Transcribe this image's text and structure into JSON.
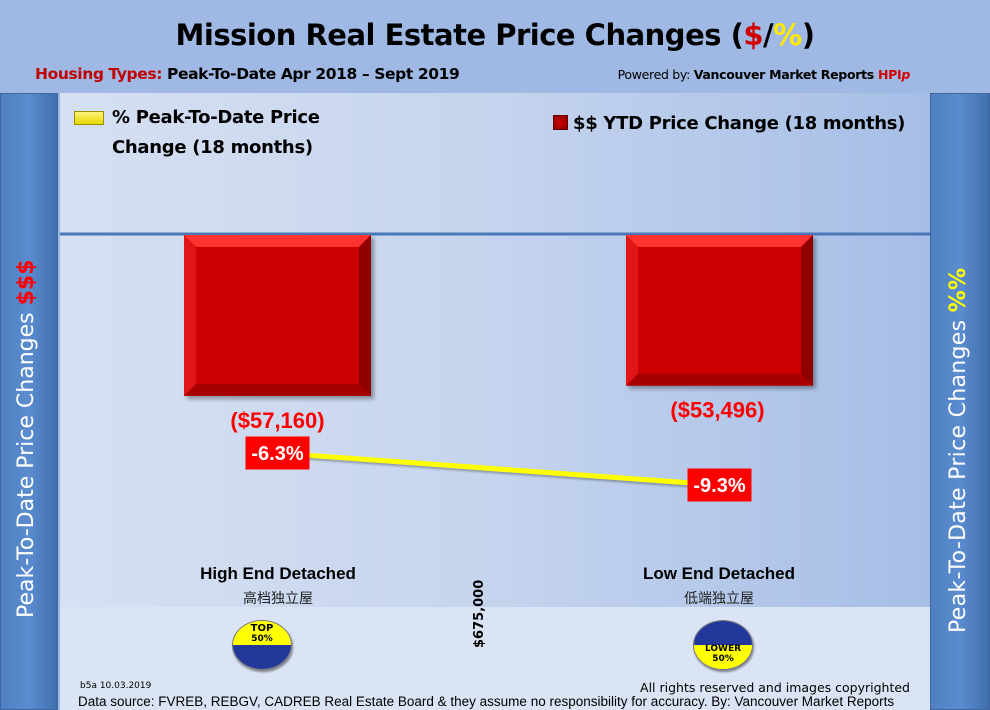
{
  "header": {
    "title_main": "Mission Real Estate Price Changes (",
    "title_dollar": "$",
    "title_slash": "/",
    "title_pct": "%",
    "title_close": ")",
    "subtitle_label": "Housing Types:",
    "subtitle_text": " Peak-To-Date Apr 2018 – Sept 2019",
    "powered_prefix": "Powered by: ",
    "powered_brand": "Vancouver Market Reports ",
    "powered_hpi": "HPI",
    "powered_p": "p"
  },
  "sidebars": {
    "left_text": "Peak-To-Date Price Changes ",
    "left_accent": "$$$",
    "right_text": "Peak-To-Date  Price  Changes  ",
    "right_accent": "%%"
  },
  "colors": {
    "bar": "#cc0606",
    "line": "#ffff00",
    "label_red": "#ff0000",
    "badge_yellow": "#ffff00",
    "badge_blue": "#22379a"
  },
  "chart_data": {
    "type": "bar",
    "title": "Mission Real Estate Price Changes ($/%)",
    "categories": [
      "High End Detached",
      "Low End Detached"
    ],
    "categories_cn": [
      "高档独立屋",
      "低端独立屋"
    ],
    "series": [
      {
        "name": "$$ YTD Price Change (18 months)",
        "type": "bar",
        "values": [
          -57160,
          -53496
        ],
        "labels": [
          "($57,160)",
          "($53,496)"
        ]
      },
      {
        "name": "% Peak-To-Date Price Change (18 months)",
        "type": "line",
        "values": [
          -6.3,
          -9.3
        ],
        "labels": [
          "-6.3%",
          "-9.3%"
        ]
      }
    ],
    "legend": [
      {
        "label": "% Peak-To-Date Price Change (18 months)",
        "position": "top-left"
      },
      {
        "label": "$$ YTD Price Change (18 months)",
        "position": "top-right"
      }
    ],
    "ylabel_left": "Peak-To-Date Price Changes $$$",
    "ylabel_right": "Peak-To-Date Price Changes %%",
    "divider_label": "$675,000",
    "grid": false
  },
  "badges": [
    {
      "line1": "TOP",
      "line2": "50%"
    },
    {
      "line1": "LOWER",
      "line2": "50%"
    }
  ],
  "footer": {
    "code": "b5a 10.03.2019",
    "rights": "All rights reserved and  images copyrighted",
    "source": "Data source: FVREB, REBGV, CADREB Real Estate Board & they assume no responsibility for accuracy. By: Vancouver Market Reports"
  }
}
